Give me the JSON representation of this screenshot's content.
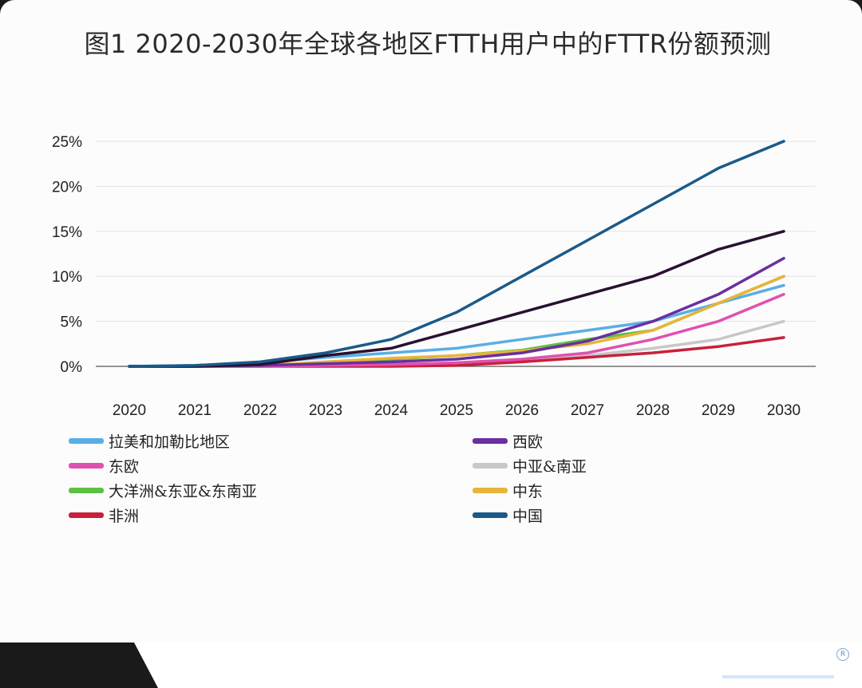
{
  "title": "图1  2020-2030年全球各地区FTTH用户中的FTTR份额预测",
  "footer": {
    "reg_mark": "R"
  },
  "chart_data": {
    "type": "line",
    "title": "图1  2020-2030年全球各地区FTTH用户中的FTTR份额预测",
    "xlabel": "",
    "ylabel": "",
    "x": [
      "2020",
      "2021",
      "2022",
      "2023",
      "2024",
      "2025",
      "2026",
      "2027",
      "2028",
      "2029",
      "2030"
    ],
    "ylim": [
      0,
      25
    ],
    "yticks": [
      0,
      5,
      10,
      15,
      20,
      25
    ],
    "ytick_labels": [
      "0%",
      "5%",
      "10%",
      "15%",
      "20%",
      "25%"
    ],
    "grid": "horizontal",
    "legend_position": "bottom",
    "series": [
      {
        "name": "拉美和加勒比地区",
        "color": "#5aaee6",
        "values": [
          0,
          0.1,
          0.4,
          1.0,
          1.5,
          2.0,
          3.0,
          4.0,
          5.0,
          7.0,
          9.0
        ]
      },
      {
        "name": "西欧",
        "color": "#6a2fa0",
        "values": [
          0,
          0,
          0.1,
          0.3,
          0.5,
          0.8,
          1.5,
          2.8,
          5.0,
          8.0,
          12.0
        ]
      },
      {
        "name": "东欧",
        "color": "#e050b0",
        "values": [
          0,
          0,
          0,
          0.1,
          0.2,
          0.4,
          0.8,
          1.5,
          3.0,
          5.0,
          8.0
        ]
      },
      {
        "name": "中亚&南亚",
        "color": "#c8c8c8",
        "values": [
          0,
          0,
          0,
          0.1,
          0.2,
          0.4,
          0.7,
          1.2,
          2.0,
          3.0,
          5.0
        ]
      },
      {
        "name": "大洋洲&东亚&东南亚",
        "color": "#5cc040",
        "values": [
          0,
          0,
          0.1,
          0.4,
          0.8,
          1.2,
          1.8,
          3.0,
          4.0,
          7.0,
          10.0
        ]
      },
      {
        "name": "中东",
        "color": "#e8b43a",
        "values": [
          0,
          0,
          0.1,
          0.5,
          0.9,
          1.2,
          1.7,
          2.5,
          4.0,
          7.0,
          10.0
        ]
      },
      {
        "name": "非洲",
        "color": "#c8203a",
        "values": [
          0,
          0,
          0,
          0,
          0,
          0.1,
          0.5,
          1.0,
          1.5,
          2.2,
          3.2
        ]
      },
      {
        "name": "中国",
        "color": "#1a5a8a",
        "values": [
          0,
          0.1,
          0.5,
          1.5,
          3.0,
          6.0,
          10.0,
          14.0,
          18.0,
          22.0,
          25.0
        ]
      },
      {
        "name": "",
        "color": "#2a1030",
        "values": [
          0,
          0,
          0.2,
          1.2,
          2.0,
          4.0,
          6.0,
          8.0,
          10.0,
          13.0,
          15.0
        ]
      }
    ]
  },
  "legend": {
    "items": [
      {
        "label": "拉美和加勒比地区",
        "color": "#5aaee6"
      },
      {
        "label": "西欧",
        "color": "#6a2fa0"
      },
      {
        "label": "东欧",
        "color": "#e050b0"
      },
      {
        "label": "中亚&南亚",
        "color": "#c8c8c8"
      },
      {
        "label": "大洋洲&东亚&东南亚",
        "color": "#5cc040"
      },
      {
        "label": "中东",
        "color": "#e8b43a"
      },
      {
        "label": "非洲",
        "color": "#c8203a"
      },
      {
        "label": "中国",
        "color": "#1a5a8a"
      }
    ]
  }
}
